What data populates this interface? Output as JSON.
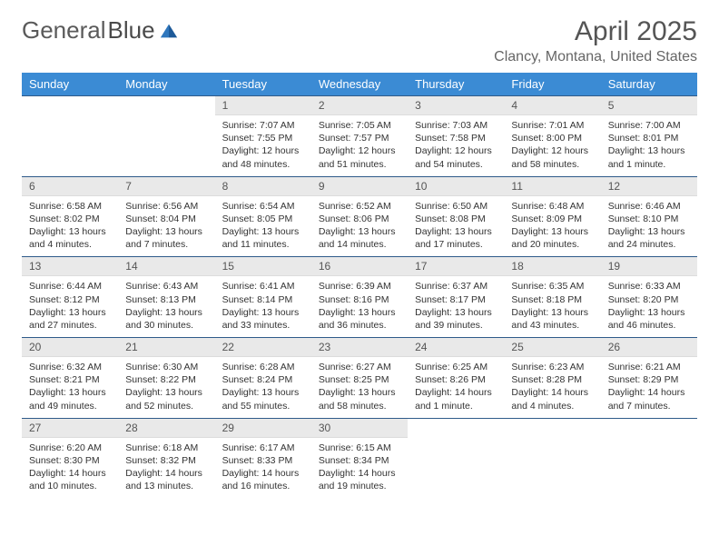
{
  "brand": {
    "part1": "General",
    "part2": "Blue",
    "logo_color": "#2f77bd"
  },
  "title": "April 2025",
  "location": "Clancy, Montana, United States",
  "colors": {
    "header_bg": "#3b8bd4",
    "header_text": "#ffffff",
    "daynum_bg": "#e9e9e9",
    "rule": "#2f5b8a",
    "body_text": "#333333"
  },
  "weekdays": [
    "Sunday",
    "Monday",
    "Tuesday",
    "Wednesday",
    "Thursday",
    "Friday",
    "Saturday"
  ],
  "weeks": [
    [
      {
        "n": "",
        "sr": "",
        "ss": "",
        "dl": "",
        "empty": true
      },
      {
        "n": "",
        "sr": "",
        "ss": "",
        "dl": "",
        "empty": true
      },
      {
        "n": "1",
        "sr": "Sunrise: 7:07 AM",
        "ss": "Sunset: 7:55 PM",
        "dl": "Daylight: 12 hours and 48 minutes."
      },
      {
        "n": "2",
        "sr": "Sunrise: 7:05 AM",
        "ss": "Sunset: 7:57 PM",
        "dl": "Daylight: 12 hours and 51 minutes."
      },
      {
        "n": "3",
        "sr": "Sunrise: 7:03 AM",
        "ss": "Sunset: 7:58 PM",
        "dl": "Daylight: 12 hours and 54 minutes."
      },
      {
        "n": "4",
        "sr": "Sunrise: 7:01 AM",
        "ss": "Sunset: 8:00 PM",
        "dl": "Daylight: 12 hours and 58 minutes."
      },
      {
        "n": "5",
        "sr": "Sunrise: 7:00 AM",
        "ss": "Sunset: 8:01 PM",
        "dl": "Daylight: 13 hours and 1 minute."
      }
    ],
    [
      {
        "n": "6",
        "sr": "Sunrise: 6:58 AM",
        "ss": "Sunset: 8:02 PM",
        "dl": "Daylight: 13 hours and 4 minutes."
      },
      {
        "n": "7",
        "sr": "Sunrise: 6:56 AM",
        "ss": "Sunset: 8:04 PM",
        "dl": "Daylight: 13 hours and 7 minutes."
      },
      {
        "n": "8",
        "sr": "Sunrise: 6:54 AM",
        "ss": "Sunset: 8:05 PM",
        "dl": "Daylight: 13 hours and 11 minutes."
      },
      {
        "n": "9",
        "sr": "Sunrise: 6:52 AM",
        "ss": "Sunset: 8:06 PM",
        "dl": "Daylight: 13 hours and 14 minutes."
      },
      {
        "n": "10",
        "sr": "Sunrise: 6:50 AM",
        "ss": "Sunset: 8:08 PM",
        "dl": "Daylight: 13 hours and 17 minutes."
      },
      {
        "n": "11",
        "sr": "Sunrise: 6:48 AM",
        "ss": "Sunset: 8:09 PM",
        "dl": "Daylight: 13 hours and 20 minutes."
      },
      {
        "n": "12",
        "sr": "Sunrise: 6:46 AM",
        "ss": "Sunset: 8:10 PM",
        "dl": "Daylight: 13 hours and 24 minutes."
      }
    ],
    [
      {
        "n": "13",
        "sr": "Sunrise: 6:44 AM",
        "ss": "Sunset: 8:12 PM",
        "dl": "Daylight: 13 hours and 27 minutes."
      },
      {
        "n": "14",
        "sr": "Sunrise: 6:43 AM",
        "ss": "Sunset: 8:13 PM",
        "dl": "Daylight: 13 hours and 30 minutes."
      },
      {
        "n": "15",
        "sr": "Sunrise: 6:41 AM",
        "ss": "Sunset: 8:14 PM",
        "dl": "Daylight: 13 hours and 33 minutes."
      },
      {
        "n": "16",
        "sr": "Sunrise: 6:39 AM",
        "ss": "Sunset: 8:16 PM",
        "dl": "Daylight: 13 hours and 36 minutes."
      },
      {
        "n": "17",
        "sr": "Sunrise: 6:37 AM",
        "ss": "Sunset: 8:17 PM",
        "dl": "Daylight: 13 hours and 39 minutes."
      },
      {
        "n": "18",
        "sr": "Sunrise: 6:35 AM",
        "ss": "Sunset: 8:18 PM",
        "dl": "Daylight: 13 hours and 43 minutes."
      },
      {
        "n": "19",
        "sr": "Sunrise: 6:33 AM",
        "ss": "Sunset: 8:20 PM",
        "dl": "Daylight: 13 hours and 46 minutes."
      }
    ],
    [
      {
        "n": "20",
        "sr": "Sunrise: 6:32 AM",
        "ss": "Sunset: 8:21 PM",
        "dl": "Daylight: 13 hours and 49 minutes."
      },
      {
        "n": "21",
        "sr": "Sunrise: 6:30 AM",
        "ss": "Sunset: 8:22 PM",
        "dl": "Daylight: 13 hours and 52 minutes."
      },
      {
        "n": "22",
        "sr": "Sunrise: 6:28 AM",
        "ss": "Sunset: 8:24 PM",
        "dl": "Daylight: 13 hours and 55 minutes."
      },
      {
        "n": "23",
        "sr": "Sunrise: 6:27 AM",
        "ss": "Sunset: 8:25 PM",
        "dl": "Daylight: 13 hours and 58 minutes."
      },
      {
        "n": "24",
        "sr": "Sunrise: 6:25 AM",
        "ss": "Sunset: 8:26 PM",
        "dl": "Daylight: 14 hours and 1 minute."
      },
      {
        "n": "25",
        "sr": "Sunrise: 6:23 AM",
        "ss": "Sunset: 8:28 PM",
        "dl": "Daylight: 14 hours and 4 minutes."
      },
      {
        "n": "26",
        "sr": "Sunrise: 6:21 AM",
        "ss": "Sunset: 8:29 PM",
        "dl": "Daylight: 14 hours and 7 minutes."
      }
    ],
    [
      {
        "n": "27",
        "sr": "Sunrise: 6:20 AM",
        "ss": "Sunset: 8:30 PM",
        "dl": "Daylight: 14 hours and 10 minutes."
      },
      {
        "n": "28",
        "sr": "Sunrise: 6:18 AM",
        "ss": "Sunset: 8:32 PM",
        "dl": "Daylight: 14 hours and 13 minutes."
      },
      {
        "n": "29",
        "sr": "Sunrise: 6:17 AM",
        "ss": "Sunset: 8:33 PM",
        "dl": "Daylight: 14 hours and 16 minutes."
      },
      {
        "n": "30",
        "sr": "Sunrise: 6:15 AM",
        "ss": "Sunset: 8:34 PM",
        "dl": "Daylight: 14 hours and 19 minutes."
      },
      {
        "n": "",
        "sr": "",
        "ss": "",
        "dl": "",
        "empty": true
      },
      {
        "n": "",
        "sr": "",
        "ss": "",
        "dl": "",
        "empty": true
      },
      {
        "n": "",
        "sr": "",
        "ss": "",
        "dl": "",
        "empty": true
      }
    ]
  ]
}
